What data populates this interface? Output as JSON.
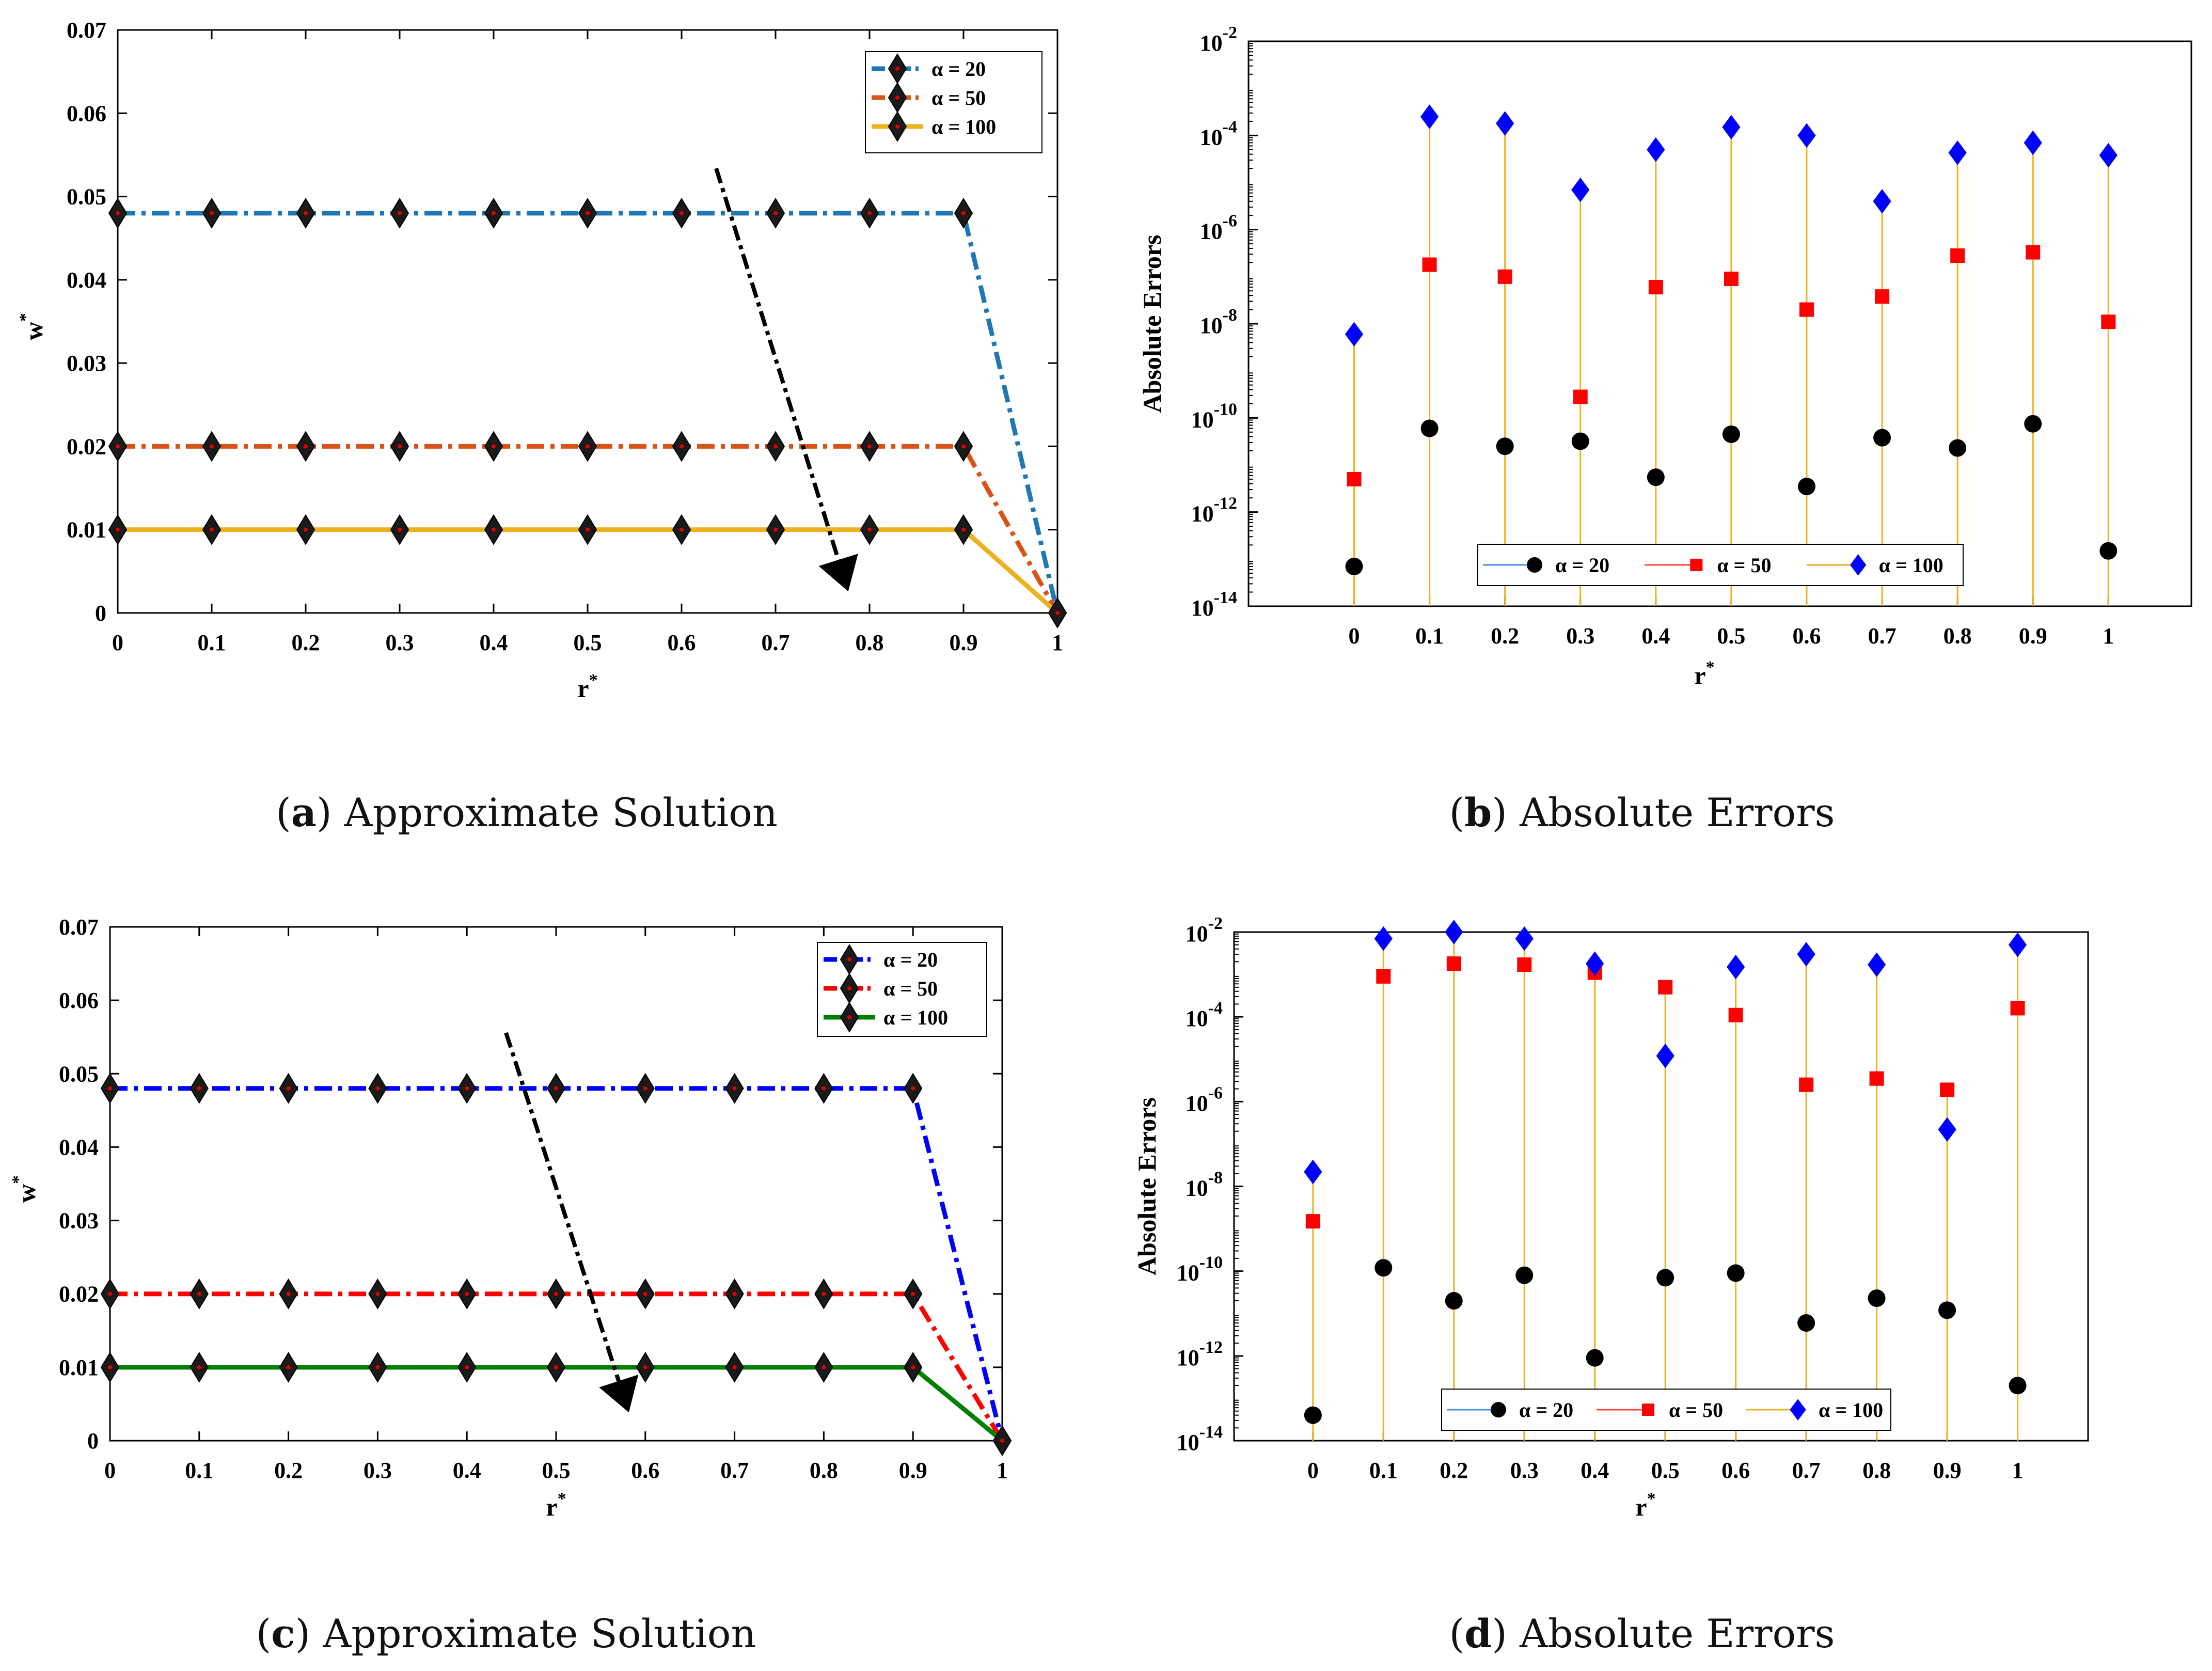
{
  "figure": {
    "captions": [
      {
        "letter": "a",
        "text": "Approximate Solution"
      },
      {
        "letter": "b",
        "text": "Absolute Errors"
      },
      {
        "letter": "c",
        "text": "Approximate Solution"
      },
      {
        "letter": "d",
        "text": "Absolute Errors"
      }
    ]
  },
  "chart_data": [
    {
      "id": "a",
      "type": "line",
      "xlabel": "r*",
      "ylabel": "w*",
      "x": [
        0,
        0.1,
        0.2,
        0.3,
        0.4,
        0.5,
        0.6,
        0.7,
        0.8,
        0.9,
        1
      ],
      "xlim": [
        0,
        1
      ],
      "ylim": [
        0,
        0.07
      ],
      "xticks": [
        "0",
        "0.1",
        "0.2",
        "0.3",
        "0.4",
        "0.5",
        "0.6",
        "0.7",
        "0.8",
        "0.9",
        "1"
      ],
      "yticks": [
        "0",
        "0.01",
        "0.02",
        "0.03",
        "0.04",
        "0.05",
        "0.06",
        "0.07"
      ],
      "legend_position": "top-right",
      "annotation": "arrow indicating decreasing w* as alpha increases",
      "series": [
        {
          "name": "α = 20",
          "color": "#1f77b4",
          "dash": "dashdot",
          "values": [
            0.048,
            0.048,
            0.048,
            0.048,
            0.048,
            0.048,
            0.048,
            0.048,
            0.048,
            0.048,
            0
          ]
        },
        {
          "name": "α = 50",
          "color": "#d95319",
          "dash": "dashdot",
          "values": [
            0.02,
            0.02,
            0.02,
            0.02,
            0.02,
            0.02,
            0.02,
            0.02,
            0.02,
            0.02,
            0
          ]
        },
        {
          "name": "α = 100",
          "color": "#edb120",
          "dash": "solid",
          "values": [
            0.01,
            0.01,
            0.01,
            0.01,
            0.01,
            0.01,
            0.01,
            0.01,
            0.01,
            0.01,
            0
          ]
        }
      ]
    },
    {
      "id": "b",
      "type": "scatter",
      "scale": "log",
      "xlabel": "r*",
      "ylabel": "Absolute Errors",
      "x": [
        0,
        0.1,
        0.2,
        0.3,
        0.4,
        0.5,
        0.6,
        0.7,
        0.8,
        0.9,
        1
      ],
      "xticks": [
        "0",
        "0.1",
        "0.2",
        "0.3",
        "0.4",
        "0.5",
        "0.6",
        "0.7",
        "0.8",
        "0.9",
        "1"
      ],
      "xlim": [
        -0.14,
        1.11
      ],
      "ylim_exp": [
        -14,
        -2
      ],
      "yticks_exp": [
        "-14",
        "-12",
        "-10",
        "-8",
        "-6",
        "-4",
        "-2"
      ],
      "legend_position": "bottom",
      "series": [
        {
          "name": "α = 20",
          "marker": "circle",
          "color": "#000000",
          "values": [
            7e-14,
            6e-11,
            2.5e-11,
            3.2e-11,
            5.5e-12,
            4.5e-11,
            3.5e-12,
            3.8e-11,
            2.3e-11,
            7.5e-11,
            1.5e-13
          ]
        },
        {
          "name": "α = 50",
          "marker": "square",
          "color": "#ff0000",
          "values": [
            5e-12,
            1.8e-07,
            1e-07,
            2.8e-10,
            6e-08,
            9e-08,
            2e-08,
            3.8e-08,
            2.8e-07,
            3.3e-07,
            1.1e-08
          ]
        },
        {
          "name": "α = 100",
          "marker": "diamond",
          "color": "#0000ff",
          "values": [
            6e-09,
            0.00025,
            0.00018,
            7e-06,
            5e-05,
            0.00015,
            0.0001,
            4e-06,
            4.3e-05,
            7e-05,
            3.8e-05
          ]
        }
      ]
    },
    {
      "id": "c",
      "type": "line",
      "xlabel": "r*",
      "ylabel": "w*",
      "x": [
        0,
        0.1,
        0.2,
        0.3,
        0.4,
        0.5,
        0.6,
        0.7,
        0.8,
        0.9,
        1
      ],
      "xlim": [
        0,
        1
      ],
      "ylim": [
        0,
        0.07
      ],
      "xticks": [
        "0",
        "0.1",
        "0.2",
        "0.3",
        "0.4",
        "0.5",
        "0.6",
        "0.7",
        "0.8",
        "0.9",
        "1"
      ],
      "yticks": [
        "0",
        "0.01",
        "0.02",
        "0.03",
        "0.04",
        "0.05",
        "0.06",
        "0.07"
      ],
      "legend_position": "top-right",
      "annotation": "arrow indicating decreasing w* as alpha increases",
      "series": [
        {
          "name": "α = 20",
          "color": "#0000ff",
          "dash": "dashdot",
          "values": [
            0.048,
            0.048,
            0.048,
            0.048,
            0.048,
            0.048,
            0.048,
            0.048,
            0.048,
            0.048,
            0
          ]
        },
        {
          "name": "α = 50",
          "color": "#ff0000",
          "dash": "dashdot",
          "values": [
            0.02,
            0.02,
            0.02,
            0.02,
            0.02,
            0.02,
            0.02,
            0.02,
            0.02,
            0.02,
            0
          ]
        },
        {
          "name": "α = 100",
          "color": "#008000",
          "dash": "solid",
          "values": [
            0.01,
            0.01,
            0.01,
            0.01,
            0.01,
            0.01,
            0.01,
            0.01,
            0.01,
            0.01,
            0
          ]
        }
      ]
    },
    {
      "id": "d",
      "type": "scatter",
      "scale": "log",
      "xlabel": "r*",
      "ylabel": "Absolute Errors",
      "x": [
        0,
        0.1,
        0.2,
        0.3,
        0.4,
        0.5,
        0.6,
        0.7,
        0.8,
        0.9,
        1
      ],
      "xticks": [
        "0",
        "0.1",
        "0.2",
        "0.3",
        "0.4",
        "0.5",
        "0.6",
        "0.7",
        "0.8",
        "0.9",
        "1"
      ],
      "xlim": [
        -0.112,
        1.1
      ],
      "ylim_exp": [
        -14,
        -2
      ],
      "yticks_exp": [
        "-14",
        "-12",
        "-10",
        "-8",
        "-6",
        "-4",
        "-2"
      ],
      "legend_position": "bottom",
      "series": [
        {
          "name": "α = 20",
          "marker": "circle",
          "color": "#000000",
          "values": [
            4e-14,
            1.2e-10,
            2e-11,
            8e-11,
            9e-13,
            7e-11,
            9e-11,
            6e-12,
            2.3e-11,
            1.2e-11,
            2e-13
          ]
        },
        {
          "name": "α = 50",
          "marker": "square",
          "color": "#ff0000",
          "values": [
            1.5e-09,
            0.0009,
            0.0018,
            0.0017,
            0.0011,
            0.0005,
            0.00011,
            2.5e-06,
            3.5e-06,
            1.9e-06,
            0.00016
          ]
        },
        {
          "name": "α = 100",
          "marker": "diamond",
          "color": "#0000ff",
          "values": [
            2.2e-08,
            0.007,
            0.01,
            0.007,
            0.0018,
            1.2e-05,
            0.0015,
            0.003,
            0.0017,
            2.2e-07,
            0.005
          ]
        }
      ]
    }
  ]
}
